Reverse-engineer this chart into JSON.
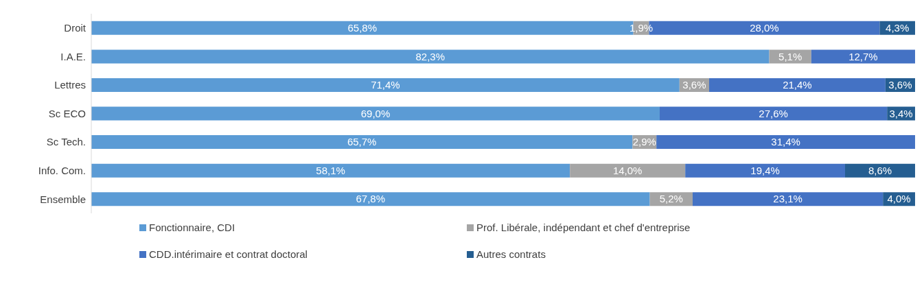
{
  "chart_data": {
    "type": "bar",
    "orientation": "horizontal",
    "stacked": true,
    "categories": [
      "Droit",
      "I.A.E.",
      "Lettres",
      "Sc ECO",
      "Sc Tech.",
      "Info. Com.",
      "Ensemble"
    ],
    "xlim": [
      0,
      100
    ],
    "tick_labels": "y",
    "grid": false,
    "legend": "bottom",
    "series": [
      {
        "name": "Fonctionnaire, CDI",
        "color": "#5b9bd5",
        "values": [
          65.8,
          82.3,
          71.4,
          69.0,
          65.7,
          58.1,
          67.8
        ],
        "value_labels": [
          "65,8%",
          "82,3%",
          "71,4%",
          "69,0%",
          "65,7%",
          "58,1%",
          "67,8%"
        ]
      },
      {
        "name": "Prof. Libérale, indépendant et chef d'entreprise",
        "color": "#a5a5a5",
        "values": [
          1.9,
          5.1,
          3.6,
          null,
          2.9,
          14.0,
          5.2
        ],
        "value_labels": [
          "1,9%",
          "5,1%",
          "3,6%",
          null,
          "2,9%",
          "14,0%",
          "5,2%"
        ]
      },
      {
        "name": "CDD.intérimaire et contrat doctoral",
        "color": "#4472c4",
        "values": [
          28.0,
          12.7,
          21.4,
          27.6,
          31.4,
          19.4,
          23.1
        ],
        "value_labels": [
          "28,0%",
          "12,7%",
          "21,4%",
          "27,6%",
          "31,4%",
          "19,4%",
          "23,1%"
        ]
      },
      {
        "name": "Autres contrats",
        "color": "#255e91",
        "values": [
          4.3,
          null,
          3.6,
          3.4,
          null,
          8.6,
          4.0
        ],
        "value_labels": [
          "4,3%",
          null,
          "3,6%",
          "3,4%",
          null,
          "8,6%",
          "4,0%"
        ]
      }
    ]
  }
}
